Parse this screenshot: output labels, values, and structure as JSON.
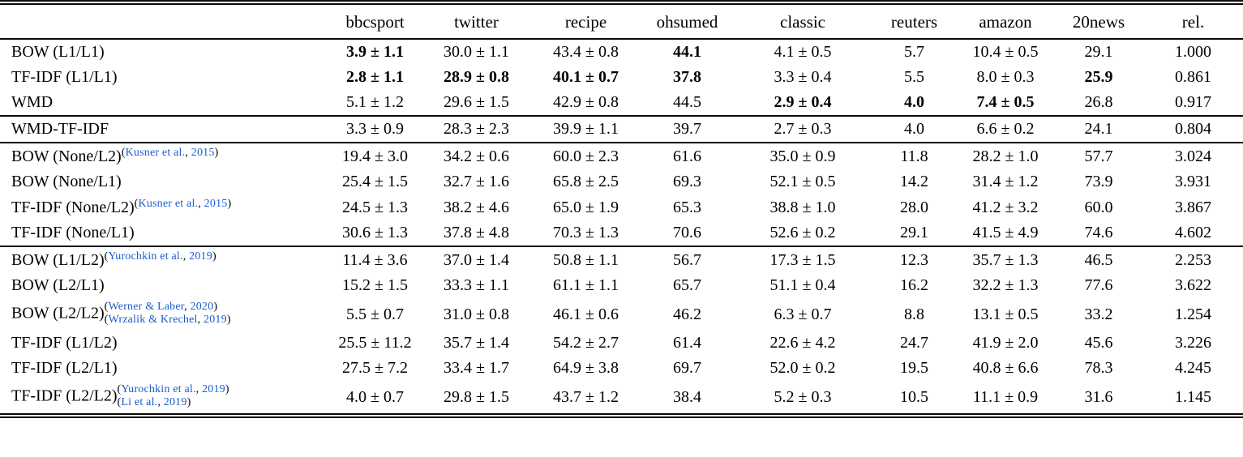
{
  "colors": {
    "citation_blue": "#1a5ccc",
    "rule_black": "#0a0a0a"
  },
  "table": {
    "columns": [
      "",
      "bbcsport",
      "twitter",
      "recipe",
      "ohsumed",
      "classic",
      "reuters",
      "amazon",
      "20news",
      "rel."
    ],
    "groups": [
      {
        "rows": [
          {
            "label": "BOW (L1/L1)",
            "cites": [],
            "cite_style": "none",
            "cells": [
              {
                "v": "3.9 ± 1.1",
                "b": true
              },
              {
                "v": "30.0 ± 1.1",
                "b": false
              },
              {
                "v": "43.4 ± 0.8",
                "b": false
              },
              {
                "v": "44.1",
                "b": true
              },
              {
                "v": "4.1 ± 0.5",
                "b": false
              },
              {
                "v": "5.7",
                "b": false
              },
              {
                "v": "10.4 ± 0.5",
                "b": false
              },
              {
                "v": "29.1",
                "b": false
              },
              {
                "v": "1.000",
                "b": false
              }
            ]
          },
          {
            "label": "TF-IDF (L1/L1)",
            "cites": [],
            "cite_style": "none",
            "cells": [
              {
                "v": "2.8 ± 1.1",
                "b": true
              },
              {
                "v": "28.9 ± 0.8",
                "b": true
              },
              {
                "v": "40.1 ± 0.7",
                "b": true
              },
              {
                "v": "37.8",
                "b": true
              },
              {
                "v": "3.3 ± 0.4",
                "b": false
              },
              {
                "v": "5.5",
                "b": false
              },
              {
                "v": "8.0 ± 0.3",
                "b": false
              },
              {
                "v": "25.9",
                "b": true
              },
              {
                "v": "0.861",
                "b": false
              }
            ]
          },
          {
            "label": "WMD",
            "cites": [],
            "cite_style": "none",
            "cells": [
              {
                "v": "5.1 ± 1.2",
                "b": false
              },
              {
                "v": "29.6 ± 1.5",
                "b": false
              },
              {
                "v": "42.9 ± 0.8",
                "b": false
              },
              {
                "v": "44.5",
                "b": false
              },
              {
                "v": "2.9 ± 0.4",
                "b": true
              },
              {
                "v": "4.0",
                "b": true
              },
              {
                "v": "7.4 ± 0.5",
                "b": true
              },
              {
                "v": "26.8",
                "b": false
              },
              {
                "v": "0.917",
                "b": false
              }
            ]
          }
        ]
      },
      {
        "rows": [
          {
            "label": "WMD-TF-IDF",
            "cites": [],
            "cite_style": "none",
            "cells": [
              {
                "v": "3.3 ± 0.9",
                "b": false
              },
              {
                "v": "28.3 ± 2.3",
                "b": false
              },
              {
                "v": "39.9 ± 1.1",
                "b": false
              },
              {
                "v": "39.7",
                "b": false
              },
              {
                "v": "2.7 ± 0.3",
                "b": false
              },
              {
                "v": "4.0",
                "b": false
              },
              {
                "v": "6.6 ± 0.2",
                "b": false
              },
              {
                "v": "24.1",
                "b": false
              },
              {
                "v": "0.804",
                "b": false
              }
            ]
          }
        ]
      },
      {
        "rows": [
          {
            "label": "BOW (None/L2)",
            "cites": [
              {
                "authors": "Kusner et al.",
                "year": "2015"
              }
            ],
            "cite_style": "sup",
            "cells": [
              {
                "v": "19.4 ± 3.0",
                "b": false
              },
              {
                "v": "34.2 ± 0.6",
                "b": false
              },
              {
                "v": "60.0 ± 2.3",
                "b": false
              },
              {
                "v": "61.6",
                "b": false
              },
              {
                "v": "35.0 ± 0.9",
                "b": false
              },
              {
                "v": "11.8",
                "b": false
              },
              {
                "v": "28.2 ± 1.0",
                "b": false
              },
              {
                "v": "57.7",
                "b": false
              },
              {
                "v": "3.024",
                "b": false
              }
            ]
          },
          {
            "label": "BOW (None/L1)",
            "cites": [],
            "cite_style": "none",
            "cells": [
              {
                "v": "25.4 ± 1.5",
                "b": false
              },
              {
                "v": "32.7 ± 1.6",
                "b": false
              },
              {
                "v": "65.8 ± 2.5",
                "b": false
              },
              {
                "v": "69.3",
                "b": false
              },
              {
                "v": "52.1 ± 0.5",
                "b": false
              },
              {
                "v": "14.2",
                "b": false
              },
              {
                "v": "31.4 ± 1.2",
                "b": false
              },
              {
                "v": "73.9",
                "b": false
              },
              {
                "v": "3.931",
                "b": false
              }
            ]
          },
          {
            "label": "TF-IDF (None/L2)",
            "cites": [
              {
                "authors": "Kusner et al.",
                "year": "2015"
              }
            ],
            "cite_style": "sup",
            "cells": [
              {
                "v": "24.5 ± 1.3",
                "b": false
              },
              {
                "v": "38.2 ± 4.6",
                "b": false
              },
              {
                "v": "65.0 ± 1.9",
                "b": false
              },
              {
                "v": "65.3",
                "b": false
              },
              {
                "v": "38.8 ± 1.0",
                "b": false
              },
              {
                "v": "28.0",
                "b": false
              },
              {
                "v": "41.2 ± 3.2",
                "b": false
              },
              {
                "v": "60.0",
                "b": false
              },
              {
                "v": "3.867",
                "b": false
              }
            ]
          },
          {
            "label": "TF-IDF (None/L1)",
            "cites": [],
            "cite_style": "none",
            "cells": [
              {
                "v": "30.6 ± 1.3",
                "b": false
              },
              {
                "v": "37.8 ± 4.8",
                "b": false
              },
              {
                "v": "70.3 ± 1.3",
                "b": false
              },
              {
                "v": "70.6",
                "b": false
              },
              {
                "v": "52.6 ± 0.2",
                "b": false
              },
              {
                "v": "29.1",
                "b": false
              },
              {
                "v": "41.5 ± 4.9",
                "b": false
              },
              {
                "v": "74.6",
                "b": false
              },
              {
                "v": "4.602",
                "b": false
              }
            ]
          }
        ]
      },
      {
        "rows": [
          {
            "label": "BOW (L1/L2)",
            "cites": [
              {
                "authors": "Yurochkin et al.",
                "year": "2019"
              }
            ],
            "cite_style": "sup",
            "cells": [
              {
                "v": "11.4 ± 3.6",
                "b": false
              },
              {
                "v": "37.0 ± 1.4",
                "b": false
              },
              {
                "v": "50.8 ± 1.1",
                "b": false
              },
              {
                "v": "56.7",
                "b": false
              },
              {
                "v": "17.3 ± 1.5",
                "b": false
              },
              {
                "v": "12.3",
                "b": false
              },
              {
                "v": "35.7 ± 1.3",
                "b": false
              },
              {
                "v": "46.5",
                "b": false
              },
              {
                "v": "2.253",
                "b": false
              }
            ]
          },
          {
            "label": "BOW (L2/L1)",
            "cites": [],
            "cite_style": "none",
            "cells": [
              {
                "v": "15.2 ± 1.5",
                "b": false
              },
              {
                "v": "33.3 ± 1.1",
                "b": false
              },
              {
                "v": "61.1 ± 1.1",
                "b": false
              },
              {
                "v": "65.7",
                "b": false
              },
              {
                "v": "51.1 ± 0.4",
                "b": false
              },
              {
                "v": "16.2",
                "b": false
              },
              {
                "v": "32.2 ± 1.3",
                "b": false
              },
              {
                "v": "77.6",
                "b": false
              },
              {
                "v": "3.622",
                "b": false
              }
            ]
          },
          {
            "label": "BOW (L2/L2)",
            "cites": [
              {
                "authors": "Werner & Laber",
                "year": "2020"
              },
              {
                "authors": "Wrzalik & Krechel",
                "year": "2019"
              }
            ],
            "cite_style": "stack",
            "cells": [
              {
                "v": "5.5 ± 0.7",
                "b": false
              },
              {
                "v": "31.0 ± 0.8",
                "b": false
              },
              {
                "v": "46.1 ± 0.6",
                "b": false
              },
              {
                "v": "46.2",
                "b": false
              },
              {
                "v": "6.3 ± 0.7",
                "b": false
              },
              {
                "v": "8.8",
                "b": false
              },
              {
                "v": "13.1 ± 0.5",
                "b": false
              },
              {
                "v": "33.2",
                "b": false
              },
              {
                "v": "1.254",
                "b": false
              }
            ]
          },
          {
            "label": "TF-IDF (L1/L2)",
            "cites": [],
            "cite_style": "none",
            "cells": [
              {
                "v": "25.5 ± 11.2",
                "b": false
              },
              {
                "v": "35.7 ± 1.4",
                "b": false
              },
              {
                "v": "54.2 ± 2.7",
                "b": false
              },
              {
                "v": "61.4",
                "b": false
              },
              {
                "v": "22.6 ± 4.2",
                "b": false
              },
              {
                "v": "24.7",
                "b": false
              },
              {
                "v": "41.9 ± 2.0",
                "b": false
              },
              {
                "v": "45.6",
                "b": false
              },
              {
                "v": "3.226",
                "b": false
              }
            ]
          },
          {
            "label": "TF-IDF (L2/L1)",
            "cites": [],
            "cite_style": "none",
            "cells": [
              {
                "v": "27.5 ± 7.2",
                "b": false
              },
              {
                "v": "33.4 ± 1.7",
                "b": false
              },
              {
                "v": "64.9 ± 3.8",
                "b": false
              },
              {
                "v": "69.7",
                "b": false
              },
              {
                "v": "52.0 ± 0.2",
                "b": false
              },
              {
                "v": "19.5",
                "b": false
              },
              {
                "v": "40.8 ± 6.6",
                "b": false
              },
              {
                "v": "78.3",
                "b": false
              },
              {
                "v": "4.245",
                "b": false
              }
            ]
          },
          {
            "label": "TF-IDF (L2/L2)",
            "cites": [
              {
                "authors": "Yurochkin et al.",
                "year": "2019"
              },
              {
                "authors": "Li et al.",
                "year": "2019"
              }
            ],
            "cite_style": "stack",
            "cells": [
              {
                "v": "4.0 ± 0.7",
                "b": false
              },
              {
                "v": "29.8 ± 1.5",
                "b": false
              },
              {
                "v": "43.7 ± 1.2",
                "b": false
              },
              {
                "v": "38.4",
                "b": false
              },
              {
                "v": "5.2 ± 0.3",
                "b": false
              },
              {
                "v": "10.5",
                "b": false
              },
              {
                "v": "11.1 ± 0.9",
                "b": false
              },
              {
                "v": "31.6",
                "b": false
              },
              {
                "v": "1.145",
                "b": false
              }
            ]
          }
        ]
      }
    ]
  }
}
